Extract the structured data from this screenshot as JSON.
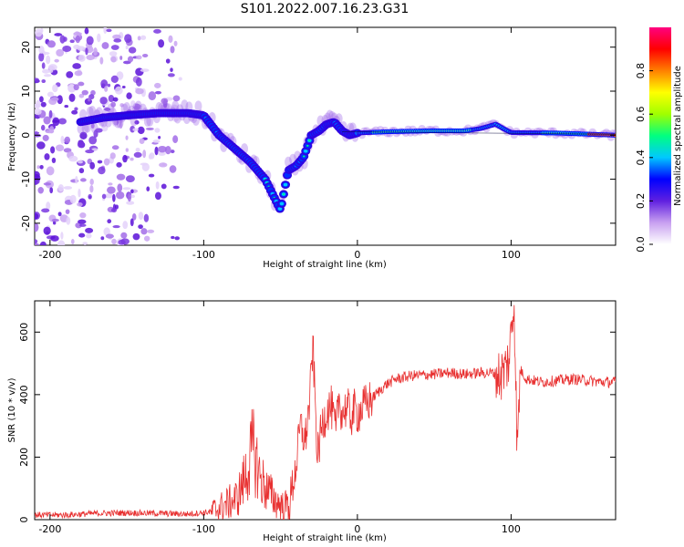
{
  "title": "S101.2022.007.16.23.G31",
  "chart_data": [
    {
      "type": "heatmap",
      "xlabel": "Height of straight line (km)",
      "ylabel": "Frequency (Hz)",
      "xlim": [
        -210,
        168
      ],
      "ylim": [
        -25,
        24.5
      ],
      "xticks": [
        "-200",
        "-100",
        "0",
        "100"
      ],
      "yticks": [
        "-20",
        "-10",
        "0",
        "10",
        "20"
      ],
      "colorbar": {
        "label": "Normalized spectral amplitude",
        "range": [
          0,
          1
        ],
        "ticks": [
          "0.0",
          "0.2",
          "0.4",
          "0.6",
          "0.8"
        ],
        "colormap": [
          "#ffffff",
          "#c8a0f0",
          "#6020e0",
          "#0000ff",
          "#00c8ff",
          "#00ff80",
          "#a0ff00",
          "#ffff00",
          "#ff8000",
          "#ff0000",
          "#ff0080"
        ]
      },
      "ridge": {
        "x": [
          -180,
          -165,
          -150,
          -130,
          -110,
          -100,
          -90,
          -80,
          -70,
          -60,
          -50,
          -45,
          -40,
          -35,
          -30,
          -25,
          -20,
          -15,
          -10,
          -5,
          0,
          20,
          50,
          70,
          80,
          90,
          95,
          100,
          130,
          168
        ],
        "y": [
          3,
          4,
          4.5,
          5,
          5,
          4.5,
          0,
          -3,
          -6,
          -10,
          -17,
          -8,
          -7,
          -5,
          0,
          1,
          2.5,
          3,
          1,
          0,
          0.5,
          0.8,
          1,
          1,
          1.5,
          2.5,
          1.5,
          0.6,
          0.5,
          0
        ]
      }
    },
    {
      "type": "line",
      "xlabel": "Height of straight line (km)",
      "ylabel": "SNR (10 * v/v)",
      "xlim": [
        -210,
        168
      ],
      "ylim": [
        0,
        700
      ],
      "xticks": [
        "-200",
        "-100",
        "0",
        "100"
      ],
      "yticks": [
        "0",
        "200",
        "400",
        "600"
      ],
      "color": "#e83030",
      "series": [
        {
          "x": [
            -210,
            -190,
            -170,
            -150,
            -130,
            -110,
            -95,
            -85,
            -78,
            -72,
            -68,
            -63,
            -58,
            -53,
            -48,
            -44,
            -40,
            -37,
            -34,
            -31,
            -29,
            -26,
            -23,
            -20,
            -17,
            -14,
            -12,
            -10,
            -7,
            -4,
            -2,
            0,
            4,
            8,
            12,
            18,
            25,
            35,
            50,
            60,
            70,
            80,
            88,
            93,
            96,
            99,
            100,
            102,
            104,
            106,
            110,
            120,
            140,
            160,
            168
          ],
          "y": [
            15,
            15,
            20,
            22,
            20,
            18,
            25,
            50,
            70,
            150,
            230,
            130,
            90,
            60,
            40,
            55,
            170,
            300,
            250,
            380,
            560,
            200,
            300,
            350,
            360,
            280,
            390,
            340,
            360,
            330,
            350,
            340,
            360,
            380,
            400,
            430,
            450,
            460,
            465,
            470,
            465,
            470,
            470,
            460,
            480,
            520,
            600,
            700,
            220,
            480,
            450,
            440,
            450,
            440,
            440
          ]
        }
      ]
    }
  ]
}
